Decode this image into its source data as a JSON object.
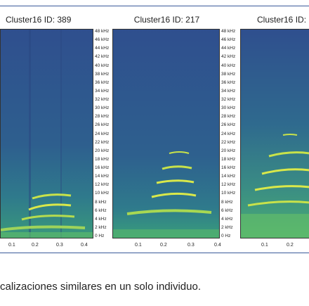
{
  "panels": [
    {
      "title": "Cluster16 ID: 389"
    },
    {
      "title": "Cluster16 ID: 217"
    },
    {
      "title": "Cluster16 ID:"
    }
  ],
  "y_ticks": [
    "48 kHz",
    "46 kHz",
    "44 kHz",
    "42 kHz",
    "40 kHz",
    "38 kHz",
    "36 kHz",
    "34 kHz",
    "32 kHz",
    "30 kHz",
    "28 kHz",
    "26 kHz",
    "24 kHz",
    "22 kHz",
    "20 kHz",
    "18 kHz",
    "16 kHz",
    "14 kHz",
    "12 kHz",
    "10 kHz",
    "8 kHz",
    "6 kHz",
    "4 kHz",
    "2 kHz",
    "0 Hz"
  ],
  "x_ticks_full": [
    "0.1",
    "0.2",
    "0.3",
    "0.4"
  ],
  "x_ticks_partial": [
    "0.1",
    "0.2"
  ],
  "caption": "calizaciones similares en un solo individuo.",
  "colors": {
    "bg_dark": "#2d4f8a",
    "bg_mid": "#2f6e8e",
    "harmonic": "#d9e84a",
    "low": "#43a673",
    "border": "#3a5a9a"
  }
}
